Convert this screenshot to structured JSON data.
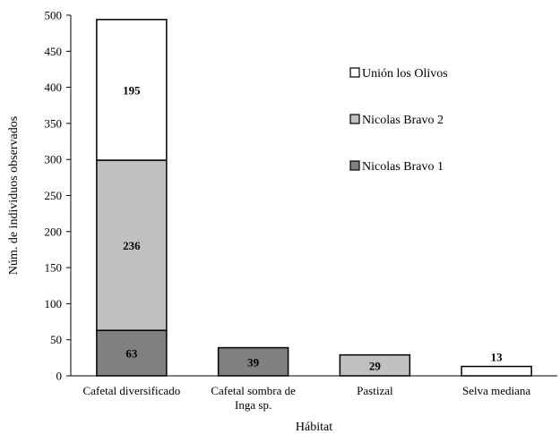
{
  "chart_data": {
    "type": "bar",
    "stacked": true,
    "title": "",
    "xlabel": "Hábitat",
    "ylabel": "Núm. de individuos observados",
    "ylim": [
      0,
      500
    ],
    "yticks": [
      0,
      50,
      100,
      150,
      200,
      250,
      300,
      350,
      400,
      450,
      500
    ],
    "grid": false,
    "legend_position": "right",
    "categories": [
      [
        "Cafetal diversificado"
      ],
      [
        "Cafetal sombra de",
        "Inga sp."
      ],
      [
        "Pastizal"
      ],
      [
        "Selva mediana"
      ]
    ],
    "series": [
      {
        "name": "Nicolas Bravo 1",
        "color": "#808080",
        "values": [
          63,
          39,
          0,
          0
        ]
      },
      {
        "name": "Nicolas Bravo 2",
        "color": "#c0c0c0",
        "values": [
          236,
          0,
          29,
          0
        ]
      },
      {
        "name": "Unión los Olivos",
        "color": "#ffffff",
        "values": [
          195,
          0,
          0,
          13
        ]
      }
    ],
    "legend_order": [
      "Unión los Olivos",
      "Nicolas Bravo 2",
      "Nicolas Bravo 1"
    ]
  }
}
